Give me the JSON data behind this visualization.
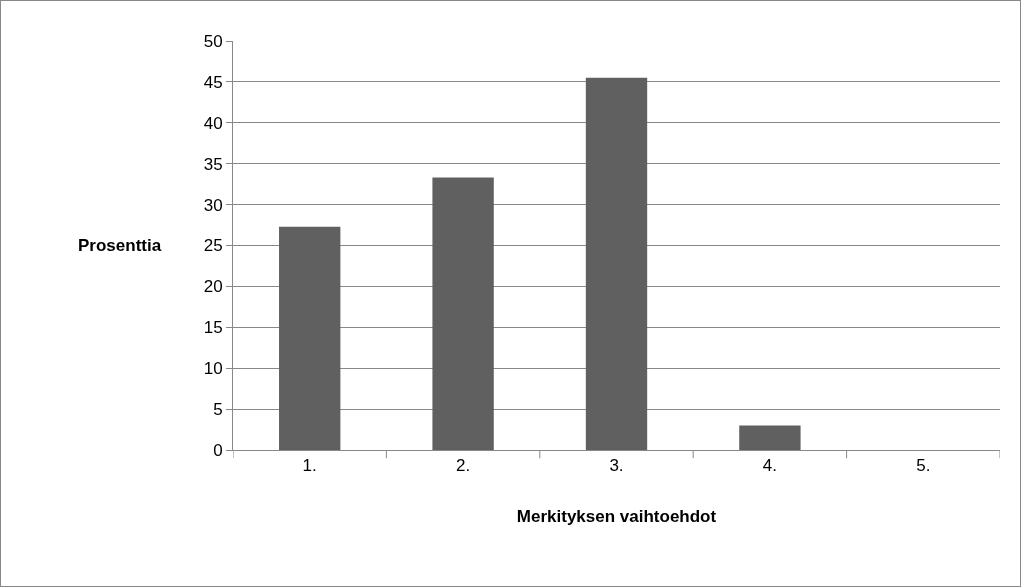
{
  "chart_data": {
    "type": "bar",
    "xlabel": "Merkityksen vaihtoehdot",
    "ylabel": "Prosenttia",
    "categories": [
      "1.",
      "2.",
      "3.",
      "4.",
      "5."
    ],
    "values": [
      27.3,
      33.3,
      45.5,
      3,
      0
    ],
    "color": "#606060",
    "ylim": [
      0,
      50
    ],
    "yticks": [
      0,
      5,
      10,
      15,
      20,
      25,
      30,
      35,
      40,
      45,
      50
    ],
    "grid": "y"
  }
}
